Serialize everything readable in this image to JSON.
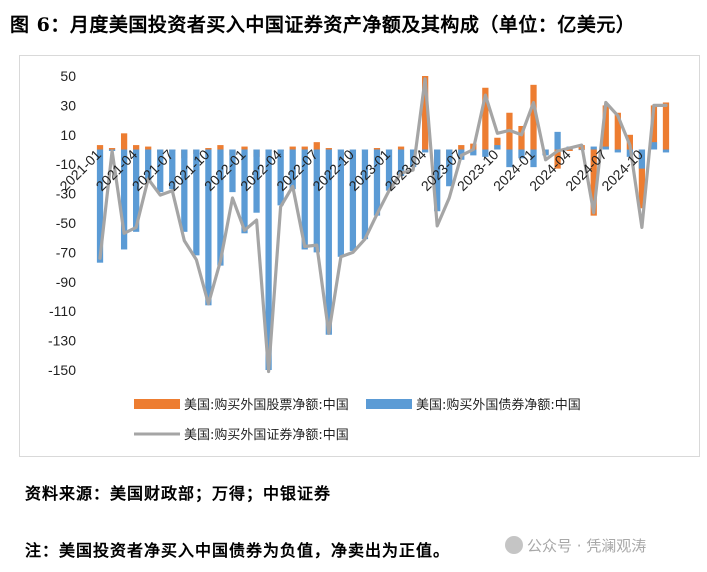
{
  "title": "图 6：月度美国投资者买入中国证券资产净额及其构成（单位：亿美元）",
  "source": "资料来源：美国财政部；万得；中银证券",
  "note": "注：美国投资者净买入中国债券为负值，净卖出为正值。",
  "watermark": "公众号 · 凭澜观涛",
  "colors": {
    "equity": "#ED7D31",
    "bond": "#5B9BD5",
    "total": "#A5A5A5"
  },
  "chart_data": {
    "type": "bar",
    "title": "",
    "ylim": [
      -150,
      50
    ],
    "yticks": [
      50,
      30,
      10,
      -10,
      -30,
      -50,
      -70,
      -90,
      -110,
      -130,
      -150
    ],
    "xtick_labels": [
      "2021-01",
      "2021-04",
      "2021-07",
      "2021-10",
      "2022-01",
      "2022-04",
      "2022-07",
      "2022-10",
      "2023-01",
      "2023-04",
      "2023-07",
      "2023-10",
      "2024-01",
      "2024-04",
      "2024-07",
      "2024-10"
    ],
    "categories": [
      "2021-01",
      "2021-02",
      "2021-03",
      "2021-04",
      "2021-05",
      "2021-06",
      "2021-07",
      "2021-08",
      "2021-09",
      "2021-10",
      "2021-11",
      "2021-12",
      "2022-01",
      "2022-02",
      "2022-03",
      "2022-04",
      "2022-05",
      "2022-06",
      "2022-07",
      "2022-08",
      "2022-09",
      "2022-10",
      "2022-11",
      "2022-12",
      "2023-01",
      "2023-02",
      "2023-03",
      "2023-04",
      "2023-05",
      "2023-06",
      "2023-07",
      "2023-08",
      "2023-09",
      "2023-10",
      "2023-11",
      "2023-12",
      "2024-01",
      "2024-02",
      "2024-03",
      "2024-04",
      "2024-05",
      "2024-06",
      "2024-07",
      "2024-08",
      "2024-09",
      "2024-10",
      "2024-11",
      "2024-12"
    ],
    "legend": [
      "美国:购买外国股票净额:中国",
      "美国:购买外国债券净额:中国",
      "美国:购买外国证券净额:中国"
    ],
    "legend_position": "bottom",
    "series": [
      {
        "name": "美国:购买外国股票净额:中国",
        "kind": "bar",
        "values": [
          3,
          1,
          11,
          3,
          2,
          -2,
          -1,
          -6,
          -3,
          1,
          3,
          -4,
          2,
          -5,
          -1,
          -1,
          2,
          2,
          5,
          1,
          0,
          -1,
          0,
          1,
          0,
          2,
          -2,
          50,
          -10,
          -8,
          3,
          4,
          42,
          8,
          25,
          16,
          44,
          -3,
          -13,
          -1,
          3,
          -45,
          30,
          25,
          10,
          -40,
          30,
          32
        ]
      },
      {
        "name": "美国:购买外国债券净额:中国",
        "kind": "bar",
        "values": [
          -77,
          -1,
          -68,
          -56,
          -22,
          -29,
          -27,
          -56,
          -72,
          -106,
          -79,
          -29,
          -57,
          -43,
          -150,
          -38,
          -27,
          -68,
          -70,
          -126,
          -73,
          -69,
          -61,
          -45,
          -28,
          -18,
          -12,
          -2,
          -42,
          -25,
          -7,
          -4,
          -5,
          3,
          -12,
          -6,
          -12,
          -4,
          12,
          2,
          0,
          2,
          2,
          -2,
          -5,
          -13,
          5,
          -2
        ]
      },
      {
        "name": "美国:购买外国证券净额:中国",
        "kind": "line",
        "values": [
          -74,
          -1,
          -57,
          -53,
          -20,
          -31,
          -28,
          -62,
          -75,
          -105,
          -76,
          -33,
          -55,
          -48,
          -151,
          -39,
          -25,
          -66,
          -65,
          -125,
          -73,
          -70,
          -61,
          -44,
          -28,
          -16,
          -14,
          48,
          -52,
          -33,
          -4,
          0,
          37,
          11,
          13,
          10,
          32,
          -7,
          -1,
          1,
          3,
          -43,
          32,
          23,
          3,
          -53,
          30,
          30
        ]
      }
    ]
  }
}
